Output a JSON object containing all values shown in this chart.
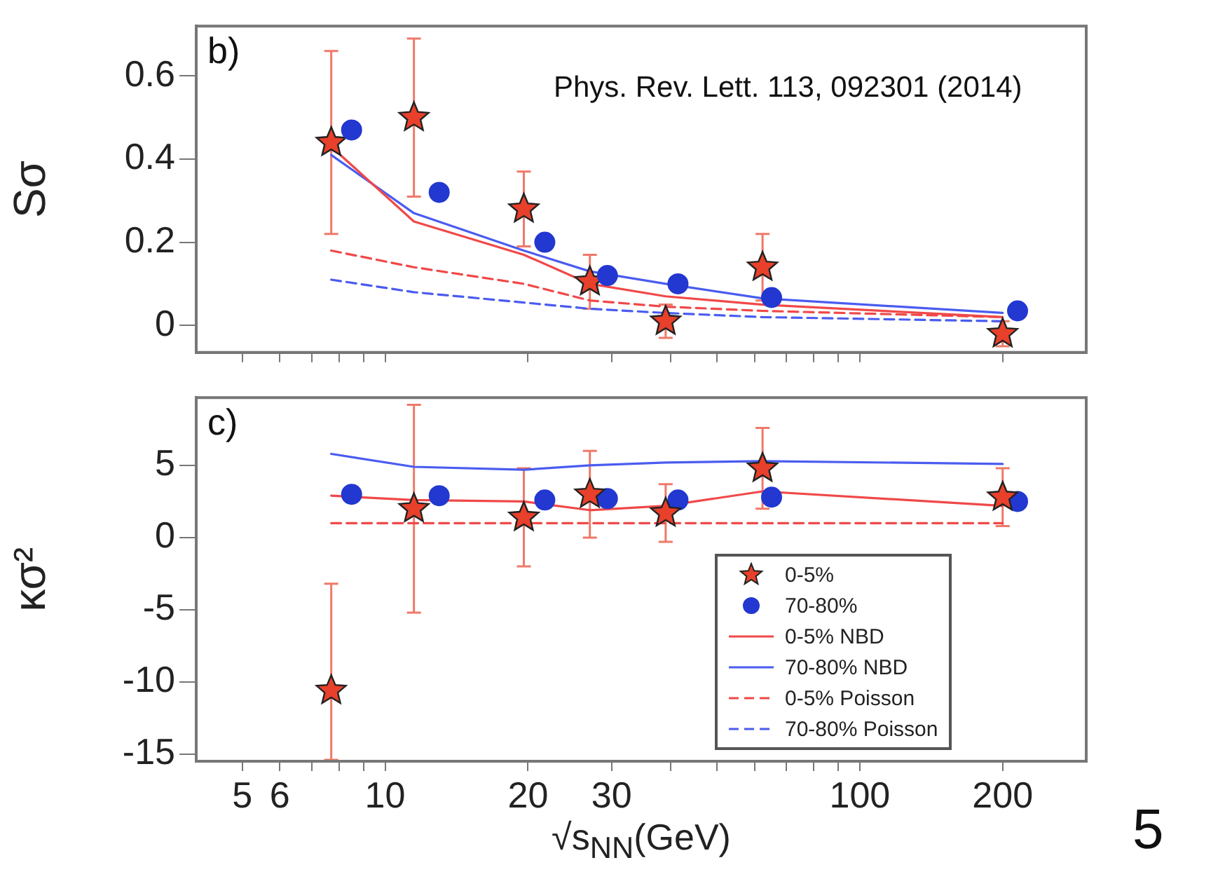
{
  "chart_data": [
    {
      "type": "scatter",
      "ylabel": "Sσ",
      "annotations": [
        "b)",
        "Phys. Rev. Lett. 113, 092301 (2014)"
      ],
      "log": "x",
      "xlim": [
        4,
        300
      ],
      "xticks": [
        5,
        6,
        {
          "value": 7,
          "label": null
        },
        {
          "value": 8,
          "label": null
        },
        {
          "value": 9,
          "label": null
        },
        10,
        20,
        30,
        {
          "value": 40,
          "label": null
        },
        {
          "value": 50,
          "label": null
        },
        {
          "value": 60,
          "label": null
        },
        {
          "value": 70,
          "label": null
        },
        {
          "value": 80,
          "label": null
        },
        {
          "value": 90,
          "label": null
        },
        100,
        200
      ],
      "ylim": [
        -0.065,
        0.72
      ],
      "yticks": [
        0,
        0.2,
        0.4,
        0.6
      ],
      "tick_labels": "y",
      "grid": false,
      "series": [
        {
          "type": "line",
          "color": "#f04848",
          "line_style": "solid",
          "marker": "none",
          "x": [
            7.7,
            11.5,
            19.6,
            27,
            39,
            62.4,
            200
          ],
          "values": [
            0.43,
            0.25,
            0.17,
            0.1,
            0.07,
            0.05,
            0.02
          ]
        },
        {
          "type": "line",
          "color": "#4a5cf0",
          "line_style": "solid",
          "marker": "none",
          "x": [
            7.7,
            11.5,
            19.6,
            27,
            39,
            62.4,
            200
          ],
          "values": [
            0.41,
            0.27,
            0.18,
            0.13,
            0.1,
            0.065,
            0.03
          ]
        },
        {
          "type": "line",
          "color": "#f04848",
          "line_style": "dashed",
          "marker": "none",
          "x": [
            7.7,
            11.5,
            19.6,
            27,
            39,
            62.4,
            200
          ],
          "values": [
            0.18,
            0.14,
            0.1,
            0.06,
            0.045,
            0.035,
            0.02
          ]
        },
        {
          "type": "line",
          "color": "#4a5cf0",
          "line_style": "dashed",
          "marker": "none",
          "x": [
            7.7,
            11.5,
            19.6,
            27,
            39,
            62.4,
            200
          ],
          "values": [
            0.11,
            0.08,
            0.055,
            0.04,
            0.03,
            0.02,
            0.01
          ]
        },
        {
          "type": "scatter",
          "color": "#2238d0",
          "marker": "circle",
          "x": [
            8.5,
            13,
            21.7,
            29.4,
            41.4,
            65.2,
            215
          ],
          "values": [
            0.47,
            0.32,
            0.2,
            0.12,
            0.1,
            0.067,
            0.035
          ]
        },
        {
          "type": "scatter",
          "color": "#e8402a",
          "marker": "star",
          "x": [
            7.7,
            11.5,
            19.6,
            27,
            39,
            62.4,
            200
          ],
          "values": [
            0.44,
            0.5,
            0.28,
            0.105,
            0.01,
            0.14,
            -0.02
          ],
          "errors": [
            0.22,
            0.19,
            0.09,
            0.065,
            0.04,
            0.08,
            0.03
          ]
        }
      ]
    },
    {
      "type": "scatter",
      "xlabel": "√s$_{NN}$(GeV)",
      "ylabel": "κσ²",
      "annotations": [
        "c)",
        "5"
      ],
      "log": "x",
      "xlim": [
        4,
        300
      ],
      "xticks": [
        5,
        6,
        {
          "value": 7,
          "label": null
        },
        {
          "value": 8,
          "label": null
        },
        {
          "value": 9,
          "label": null
        },
        10,
        20,
        30,
        {
          "value": 40,
          "label": null
        },
        {
          "value": 50,
          "label": null
        },
        {
          "value": 60,
          "label": null
        },
        {
          "value": 70,
          "label": null
        },
        {
          "value": 80,
          "label": null
        },
        {
          "value": 90,
          "label": null
        },
        100,
        200
      ],
      "ylim": [
        -15.5,
        9.7
      ],
      "yticks": [
        5,
        0,
        -5,
        -10,
        -15
      ],
      "grid": false,
      "legend": "bottom right",
      "series": [
        {
          "name": "0-5%",
          "type": "scatter",
          "color": "#e8402a",
          "marker": "star",
          "x": [
            7.7,
            11.5,
            19.6,
            27,
            39,
            62.4,
            200
          ],
          "values": [
            -10.6,
            2.0,
            1.4,
            3.0,
            1.7,
            4.8,
            2.8
          ],
          "errors": [
            [
              -15.4,
              -3.2
            ],
            7.2,
            3.4,
            3.0,
            2.0,
            2.8,
            2.0
          ]
        },
        {
          "name": "70-80%",
          "type": "scatter",
          "color": "#2238d0",
          "marker": "circle",
          "x": [
            8.5,
            13,
            21.7,
            29.4,
            41.4,
            65.2,
            215
          ],
          "values": [
            3.0,
            2.9,
            2.6,
            2.7,
            2.6,
            2.8,
            2.5
          ]
        },
        {
          "name": "0-5% NBD",
          "type": "line",
          "color": "#f04848",
          "line_style": "solid",
          "marker": "none",
          "x": [
            7.7,
            11.5,
            19.6,
            27,
            39,
            62.4,
            200
          ],
          "values": [
            2.9,
            2.6,
            2.5,
            1.9,
            2.2,
            3.2,
            2.2
          ]
        },
        {
          "name": "70-80% NBD",
          "type": "line",
          "color": "#4a5cf0",
          "line_style": "solid",
          "marker": "none",
          "x": [
            7.7,
            11.5,
            19.6,
            27,
            39,
            62.4,
            200
          ],
          "values": [
            5.8,
            4.9,
            4.7,
            5.0,
            5.2,
            5.3,
            5.1
          ]
        },
        {
          "name": "0-5% Poisson",
          "type": "line",
          "color": "#f04848",
          "line_style": "dashed",
          "marker": "none",
          "x": [
            7.7,
            11.5,
            19.6,
            27,
            39,
            62.4,
            200
          ],
          "values": [
            1,
            1,
            1,
            1,
            1,
            1,
            1
          ]
        },
        {
          "name": "70-80% Poisson",
          "type": "line",
          "color": "#4a5cf0",
          "line_style": "dashed",
          "marker": "none"
        }
      ]
    }
  ]
}
